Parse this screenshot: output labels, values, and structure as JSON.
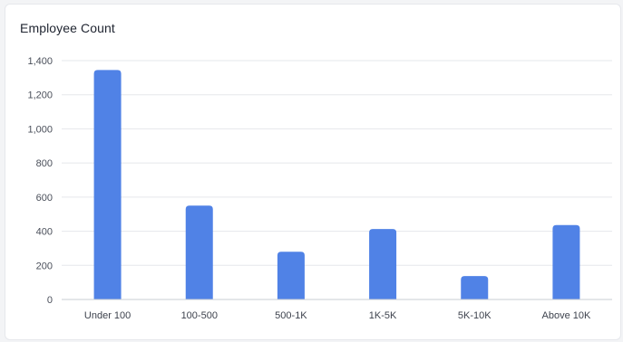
{
  "chart_data": {
    "type": "bar",
    "title": "Employee Count",
    "categories": [
      "Under 100",
      "100-500",
      "500-1K",
      "1K-5K",
      "5K-10K",
      "Above 10K"
    ],
    "values": [
      1345,
      550,
      280,
      413,
      137,
      436
    ],
    "ylim": [
      0,
      1400
    ],
    "yticks": [
      0,
      200,
      400,
      600,
      800,
      1000,
      1200,
      1400
    ],
    "ytick_labels": [
      "0",
      "200",
      "400",
      "600",
      "800",
      "1,000",
      "1,200",
      "1,400"
    ],
    "grid": true,
    "bar_color": "#5082e6",
    "grid_color": "#e5e7eb",
    "axis_color": "#c9ccd3"
  }
}
